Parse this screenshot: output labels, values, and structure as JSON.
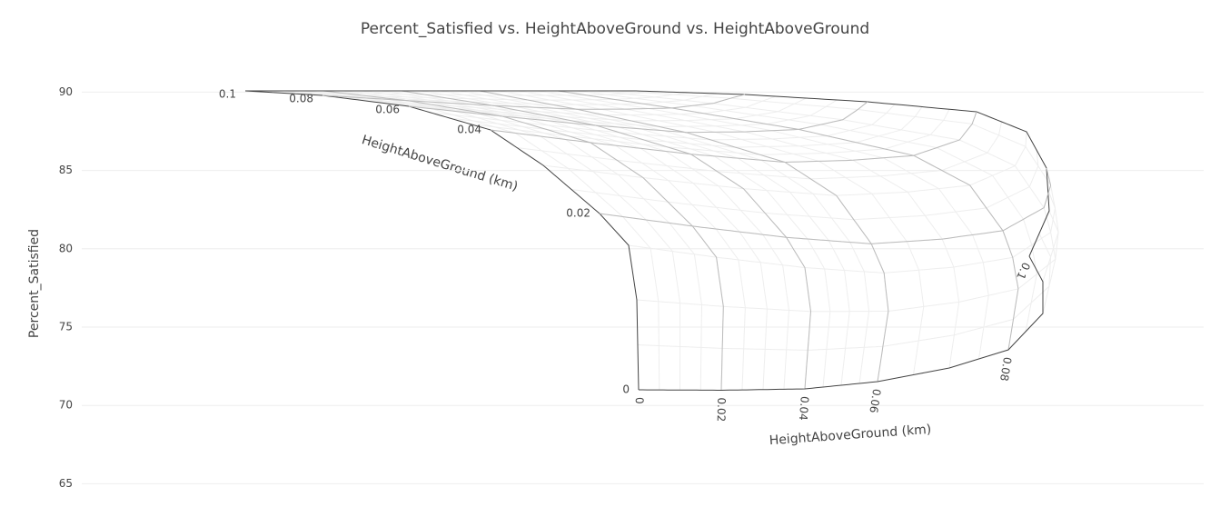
{
  "chart_data": {
    "type": "carpet",
    "title": "Percent_Satisfied vs. HeightAboveGround vs. HeightAboveGround",
    "yaxis_title": "Percent_Satisfied",
    "ylim": [
      63.4,
      92.4
    ],
    "yticks": [
      65,
      70,
      75,
      80,
      85,
      90
    ],
    "grid": true,
    "aaxis": {
      "title": "HeightAboveGround (km)",
      "range": [
        0,
        0.1
      ],
      "ticks": [
        0,
        0.02,
        0.04,
        0.06,
        0.08,
        0.1
      ]
    },
    "baxis": {
      "title": "HeightAboveGround (km)",
      "range": [
        0,
        0.1
      ],
      "ticks": [
        0,
        0.02,
        0.04,
        0.06,
        0.08,
        0.1
      ]
    }
  }
}
